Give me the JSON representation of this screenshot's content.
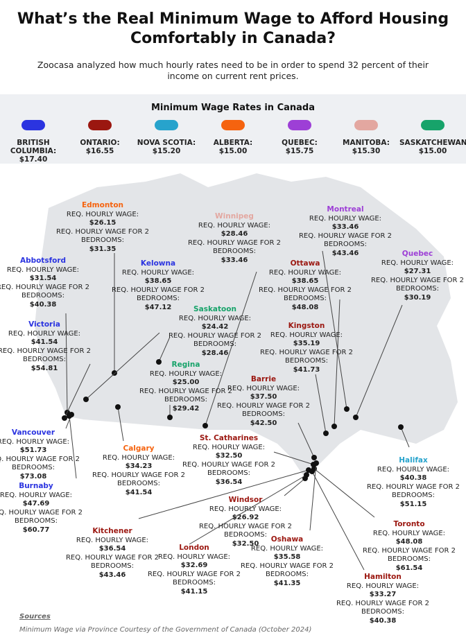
{
  "header": {
    "title": "What’s the Real Minimum Wage to Afford Housing Comfortably in Canada?",
    "subtitle": "Zoocasa analyzed how much hourly rates need to be in order to spend 32 percent of their income on current rent prices."
  },
  "legend": {
    "title": "Minimum Wage Rates in Canada",
    "provinces": [
      {
        "name": "BRITISH COLUMBIA:",
        "wage": "$17.40",
        "color": "#2b34e0"
      },
      {
        "name": "ONTARIO:",
        "wage": "$16.55",
        "color": "#9b1710"
      },
      {
        "name": "NOVA SCOTIA:",
        "wage": "$15.20",
        "color": "#27a3cc"
      },
      {
        "name": "ALBERTA:",
        "wage": "$15.00",
        "color": "#f5630f"
      },
      {
        "name": "QUEBEC:",
        "wage": "$15.75",
        "color": "#9d3fd6"
      },
      {
        "name": "MANITOBA:",
        "wage": "$15.30",
        "color": "#e3a7a0"
      },
      {
        "name": "SASKATCHEWAN:",
        "wage": "$15.00",
        "color": "#17a36a"
      }
    ]
  },
  "labels": {
    "hourly": "REQ. HOURLY WAGE:",
    "bedrooms": "REQ. HOURLY WAGE FOR 2 BEDROOMS:"
  },
  "cities": [
    {
      "name": "Edmonton",
      "color": "#f5630f",
      "hourly": "$26.15",
      "bedrooms": "$31.35"
    },
    {
      "name": "Winnipeg",
      "color": "#e3a7a0",
      "hourly": "$28.46",
      "bedrooms": "$33.46"
    },
    {
      "name": "Montreal",
      "color": "#9d3fd6",
      "hourly": "$33.46",
      "bedrooms": "$43.46"
    },
    {
      "name": "Abbotsford",
      "color": "#2b34e0",
      "hourly": "$31.54",
      "bedrooms": "$40.38"
    },
    {
      "name": "Kelowna",
      "color": "#2b34e0",
      "hourly": "$38.65",
      "bedrooms": "$47.12"
    },
    {
      "name": "Quebec",
      "color": "#9d3fd6",
      "hourly": "$27.31",
      "bedrooms": "$30.19"
    },
    {
      "name": "Ottawa",
      "color": "#9b1710",
      "hourly": "$38.65",
      "bedrooms": "$48.08"
    },
    {
      "name": "Saskatoon",
      "color": "#17a36a",
      "hourly": "$24.42",
      "bedrooms": "$28.46"
    },
    {
      "name": "Kingston",
      "color": "#9b1710",
      "hourly": "$35.19",
      "bedrooms": "$41.73"
    },
    {
      "name": "Victoria",
      "color": "#2b34e0",
      "hourly": "$41.54",
      "bedrooms": "$54.81"
    },
    {
      "name": "Regina",
      "color": "#17a36a",
      "hourly": "$25.00",
      "bedrooms": "$29.42"
    },
    {
      "name": "Barrie",
      "color": "#9b1710",
      "hourly": "$37.50",
      "bedrooms": "$42.50"
    },
    {
      "name": "Vancouver",
      "color": "#2b34e0",
      "hourly": "$51.73",
      "bedrooms": "$73.08"
    },
    {
      "name": "Calgary",
      "color": "#f5630f",
      "hourly": "$34.23",
      "bedrooms": "$41.54"
    },
    {
      "name": "St. Catharines",
      "color": "#9b1710",
      "hourly": "$32.50",
      "bedrooms": "$36.54"
    },
    {
      "name": "Halifax",
      "color": "#27a3cc",
      "hourly": "$40.38",
      "bedrooms": "$51.15"
    },
    {
      "name": "Burnaby",
      "color": "#2b34e0",
      "hourly": "$47.69",
      "bedrooms": "$60.77"
    },
    {
      "name": "Windsor",
      "color": "#9b1710",
      "hourly": "$26.92",
      "bedrooms": "$32.50"
    },
    {
      "name": "Toronto",
      "color": "#9b1710",
      "hourly": "$48.08",
      "bedrooms": "$61.54"
    },
    {
      "name": "Kitchener",
      "color": "#9b1710",
      "hourly": "$36.54",
      "bedrooms": "$43.46"
    },
    {
      "name": "London",
      "color": "#9b1710",
      "hourly": "$32.69",
      "bedrooms": "$41.15"
    },
    {
      "name": "Oshawa",
      "color": "#9b1710",
      "hourly": "$35.58",
      "bedrooms": "$41.35"
    },
    {
      "name": "Hamilton",
      "color": "#9b1710",
      "hourly": "$33.27",
      "bedrooms": "$40.38"
    }
  ],
  "sources": {
    "heading": "Sources",
    "text": "Minimum Wage via Province Courtesy of the Government of Canada (October 2024)"
  }
}
